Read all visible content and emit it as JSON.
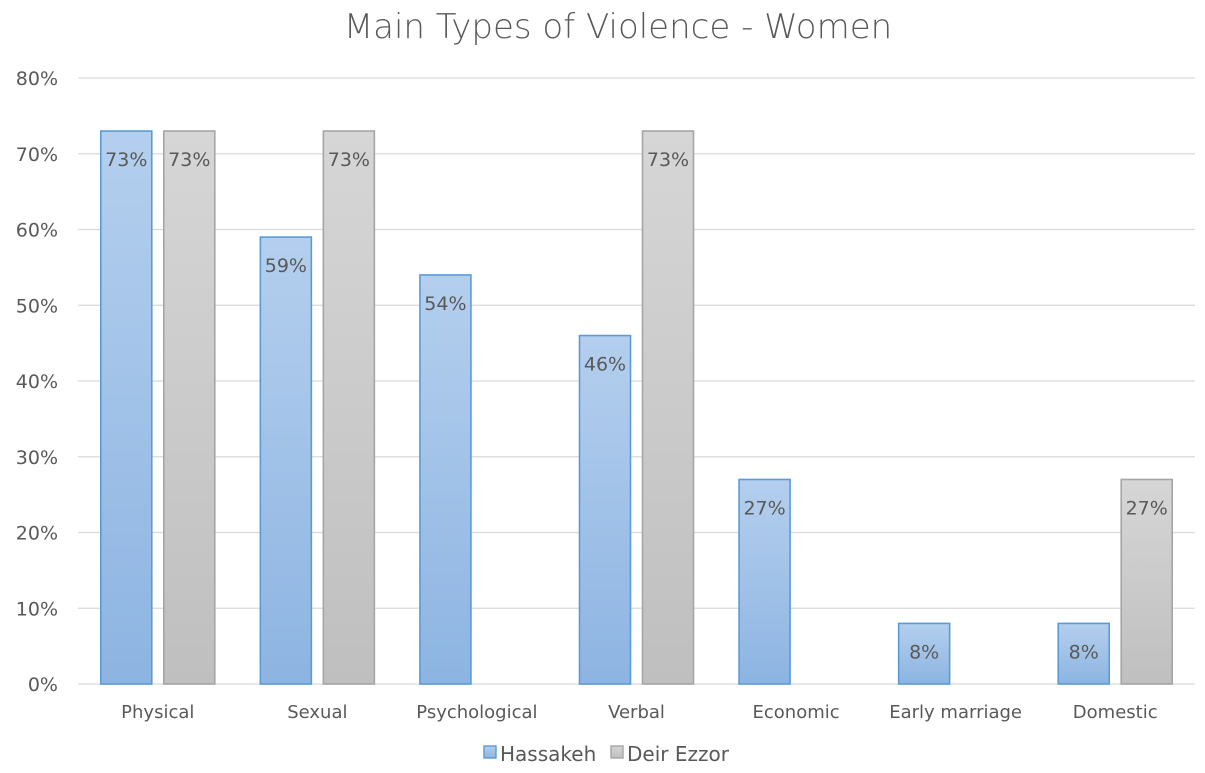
{
  "chart_data": {
    "type": "bar",
    "title": "Main Types of Violence - Women",
    "categories": [
      "Physical",
      "Sexual",
      "Psychological",
      "Verbal",
      "Economic",
      "Early marriage",
      "Domestic"
    ],
    "series": [
      {
        "name": "Hassakeh",
        "values": [
          73,
          59,
          54,
          46,
          27,
          8,
          8
        ],
        "labels": [
          "73%",
          "59%",
          "54%",
          "46%",
          "27%",
          "8%",
          "8%"
        ],
        "color": "#9dc3e6",
        "border": "#5b9bd5"
      },
      {
        "name": "Deir Ezzor",
        "values": [
          73,
          73,
          null,
          73,
          null,
          null,
          27
        ],
        "labels": [
          "73%",
          "73%",
          "",
          "73%",
          "",
          "",
          "27%"
        ],
        "color": "#c9c9c9",
        "border": "#a5a5a5"
      }
    ],
    "ylim": [
      0,
      80
    ],
    "yticks": [
      "0%",
      "10%",
      "20%",
      "30%",
      "40%",
      "50%",
      "60%",
      "70%",
      "80%"
    ],
    "grid": true,
    "legend": "bottom"
  }
}
